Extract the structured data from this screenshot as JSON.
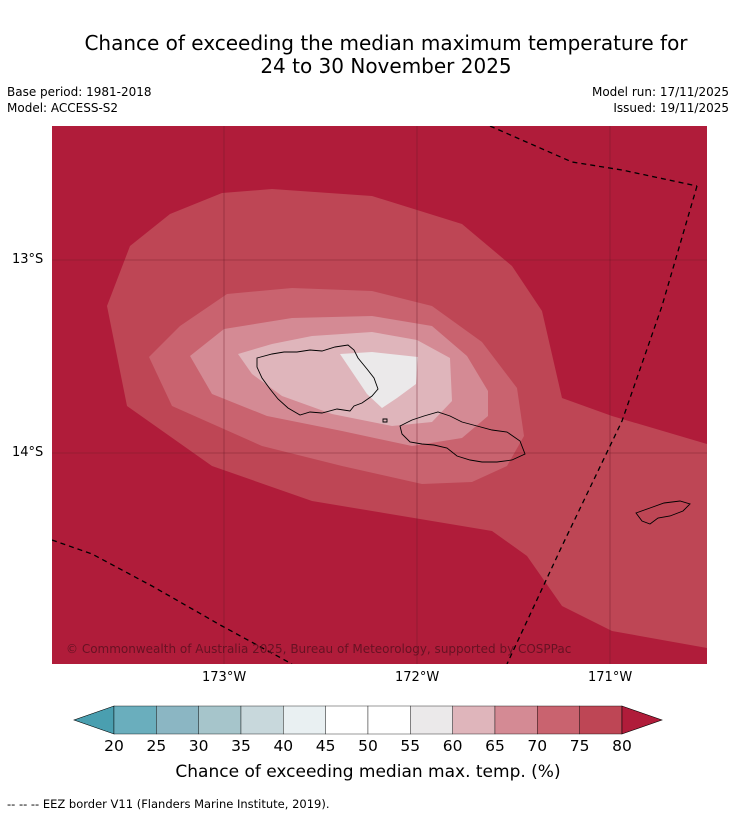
{
  "title": {
    "line1": "Chance of exceeding the median maximum temperature for",
    "line2": "24 to 30 November 2025"
  },
  "meta": {
    "base_period": "Base period: 1981-2018",
    "model": "Model: ACCESS-S2",
    "model_run": "Model run: 17/11/2025",
    "issued": "Issued: 19/11/2025"
  },
  "map": {
    "copyright": "© Commonwealth of Australia 2025, Bureau of Meteorology, supported by COSPPac",
    "lat_ticks": [
      "13°S",
      "14°S"
    ],
    "lon_ticks": [
      "173°W",
      "172°W",
      "171°W"
    ]
  },
  "colorbar": {
    "labels": [
      "20",
      "25",
      "30",
      "35",
      "40",
      "45",
      "50",
      "55",
      "60",
      "65",
      "70",
      "75",
      "80"
    ],
    "colors": {
      "below20": "#4a9fb0",
      "b20_25": "#6aaebd",
      "b25_30": "#8bb6c3",
      "b30_35": "#a6c5cb",
      "b35_40": "#c8d8dc",
      "b40_45": "#e9f0f2",
      "b45_50": "#ffffff",
      "b50_55": "#ffffff",
      "b55_60": "#ebe9ea",
      "b60_65": "#dfb5bb",
      "b65_70": "#d48a94",
      "b70_75": "#c9636f",
      "b75_80": "#be4655",
      "above80": "#b01c3a"
    },
    "title": "Chance of exceeding median max. temp. (%)"
  },
  "footnote": "--  --  -- EEZ border V11 (Flanders Marine Institute, 2019)."
}
